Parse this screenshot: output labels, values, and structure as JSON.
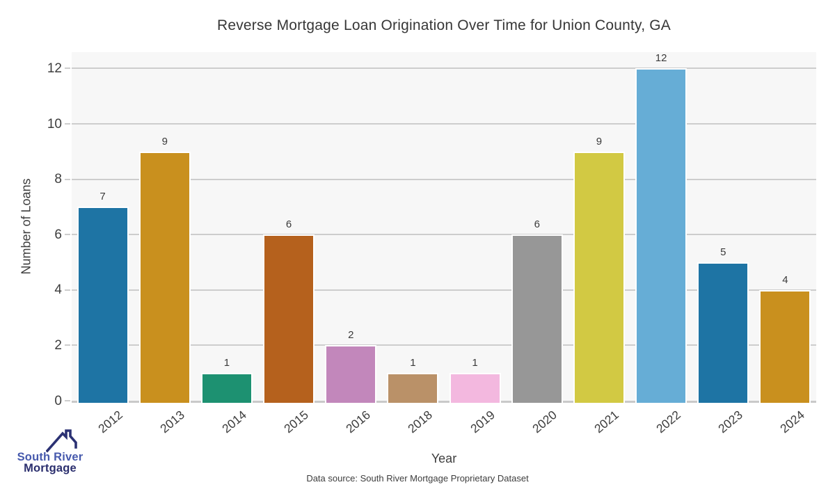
{
  "title": "Reverse Mortgage Loan Origination Over Time for Union County, GA",
  "footer": {
    "datasource": "Data source: South River Mortgage Proprietary Dataset"
  },
  "logo": {
    "line1": "South River",
    "line2": "Mortgage",
    "roof_color": "#2b3173",
    "line1_color": "#4659ad",
    "line2_color": "#2b2f6e"
  },
  "chart_data": {
    "type": "bar",
    "title": "Reverse Mortgage Loan Origination Over Time for Union County, GA",
    "xlabel": "Year",
    "ylabel": "Number of Loans",
    "categories": [
      "2012",
      "2013",
      "2014",
      "2015",
      "2016",
      "2018",
      "2019",
      "2020",
      "2021",
      "2022",
      "2023",
      "2024"
    ],
    "values": [
      7,
      9,
      1,
      6,
      2,
      1,
      1,
      6,
      9,
      12,
      5,
      4
    ],
    "bar_colors": [
      "#1e74a4",
      "#c9901e",
      "#1d9171",
      "#b5611d",
      "#c287bb",
      "#ba9168",
      "#f3b8df",
      "#979797",
      "#d2c943",
      "#66add6",
      "#1e74a4",
      "#c9901e"
    ],
    "yticks": [
      0,
      2,
      4,
      6,
      8,
      10,
      12
    ],
    "ylim": [
      0,
      12.6
    ],
    "grid": "horizontal",
    "legend": "none",
    "panel_bg": "#f7f7f7",
    "grid_color": "#cdcdcd",
    "axis_line_color": "#c9c9c9",
    "text_color": "#3d3d3d"
  }
}
